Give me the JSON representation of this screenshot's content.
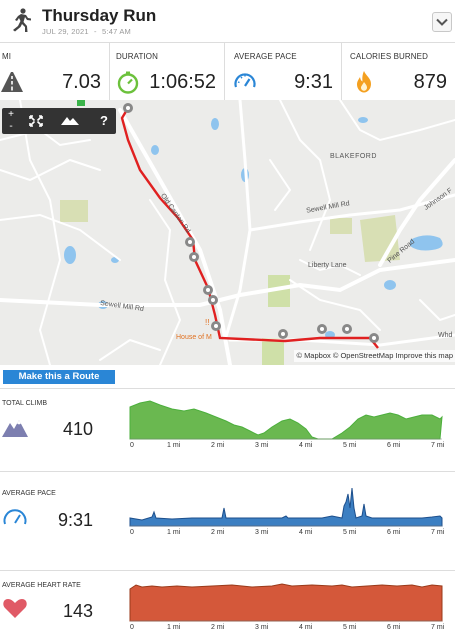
{
  "header": {
    "title": "Thursday Run",
    "date": "JUL 29, 2021",
    "separator": "-",
    "time": "5:47 AM",
    "icon": "runner-icon",
    "menu_icon": "chevron-down-icon"
  },
  "stats": [
    {
      "label": "MI",
      "value": "7.03",
      "icon": "road-icon"
    },
    {
      "label": "DURATION",
      "value": "1:06:52",
      "icon": "stopwatch-icon"
    },
    {
      "label": "AVERAGE PACE",
      "value": "9:31",
      "icon": "speedometer-icon"
    },
    {
      "label": "CALORIES BURNED",
      "value": "879",
      "icon": "flame-icon"
    }
  ],
  "map": {
    "controls": {
      "zoom_in": "+",
      "zoom_out": "-",
      "help": "?"
    },
    "labels": {
      "blakeford": "BLAKEFORD",
      "sewell_mill_rd_1": "Sewell Mill Rd",
      "sewell_mill_rd_2": "Sewell Mill Rd",
      "liberty_lane": "Liberty Lane",
      "pine_road": "Pine Road",
      "johnson_ferry": "Johnson F",
      "house_of": "House of M",
      "whd": "Whd",
      "road_name": "Old Canton Rd"
    },
    "attribution": "© Mapbox © OpenStreetMap Improve this map",
    "colors": {
      "route": "#e02020",
      "water": "#8fc4ee",
      "park": "#d8dfb4",
      "road": "#ffffff"
    }
  },
  "route_button": "Make this a Route",
  "profiles": [
    {
      "label": "TOTAL CLIMB",
      "value": "410",
      "icon": "mountain-icon",
      "color": "#4caf3c",
      "fill": "#6ab850"
    },
    {
      "label": "AVERAGE PACE",
      "value": "9:31",
      "icon": "speedometer-icon",
      "color": "#1d4f8c",
      "fill": "#3c7fc2"
    },
    {
      "label": "AVERAGE HEART RATE",
      "value": "143",
      "icon": "heart-icon",
      "color": "#9a3a1a",
      "fill": "#d4583a"
    }
  ],
  "x_ticks": [
    "0",
    "1 mi",
    "2 mi",
    "3 mi",
    "4 mi",
    "5 mi",
    "6 mi",
    "7 mi"
  ]
}
